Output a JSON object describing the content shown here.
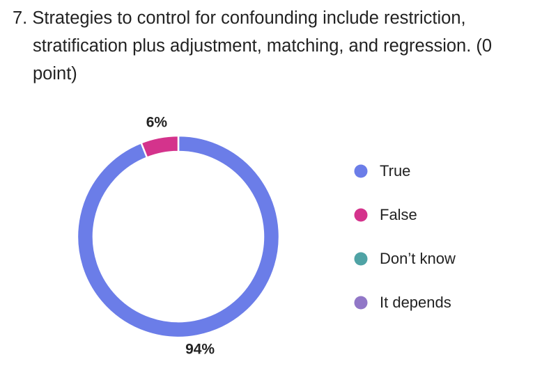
{
  "chart_data": {
    "type": "donut",
    "title": "7. Strategies to control for confounding include restriction, stratification plus adjustment, matching, and regression. (0 point)",
    "categories": [
      "True",
      "False",
      "Don’t know",
      "It depends"
    ],
    "values": [
      94,
      6,
      0,
      0
    ],
    "value_labels": [
      "94%",
      "6%",
      null,
      null
    ],
    "colors": [
      "#6b7de8",
      "#d4338c",
      "#4fa3a5",
      "#9177c7"
    ],
    "legend": "right"
  }
}
